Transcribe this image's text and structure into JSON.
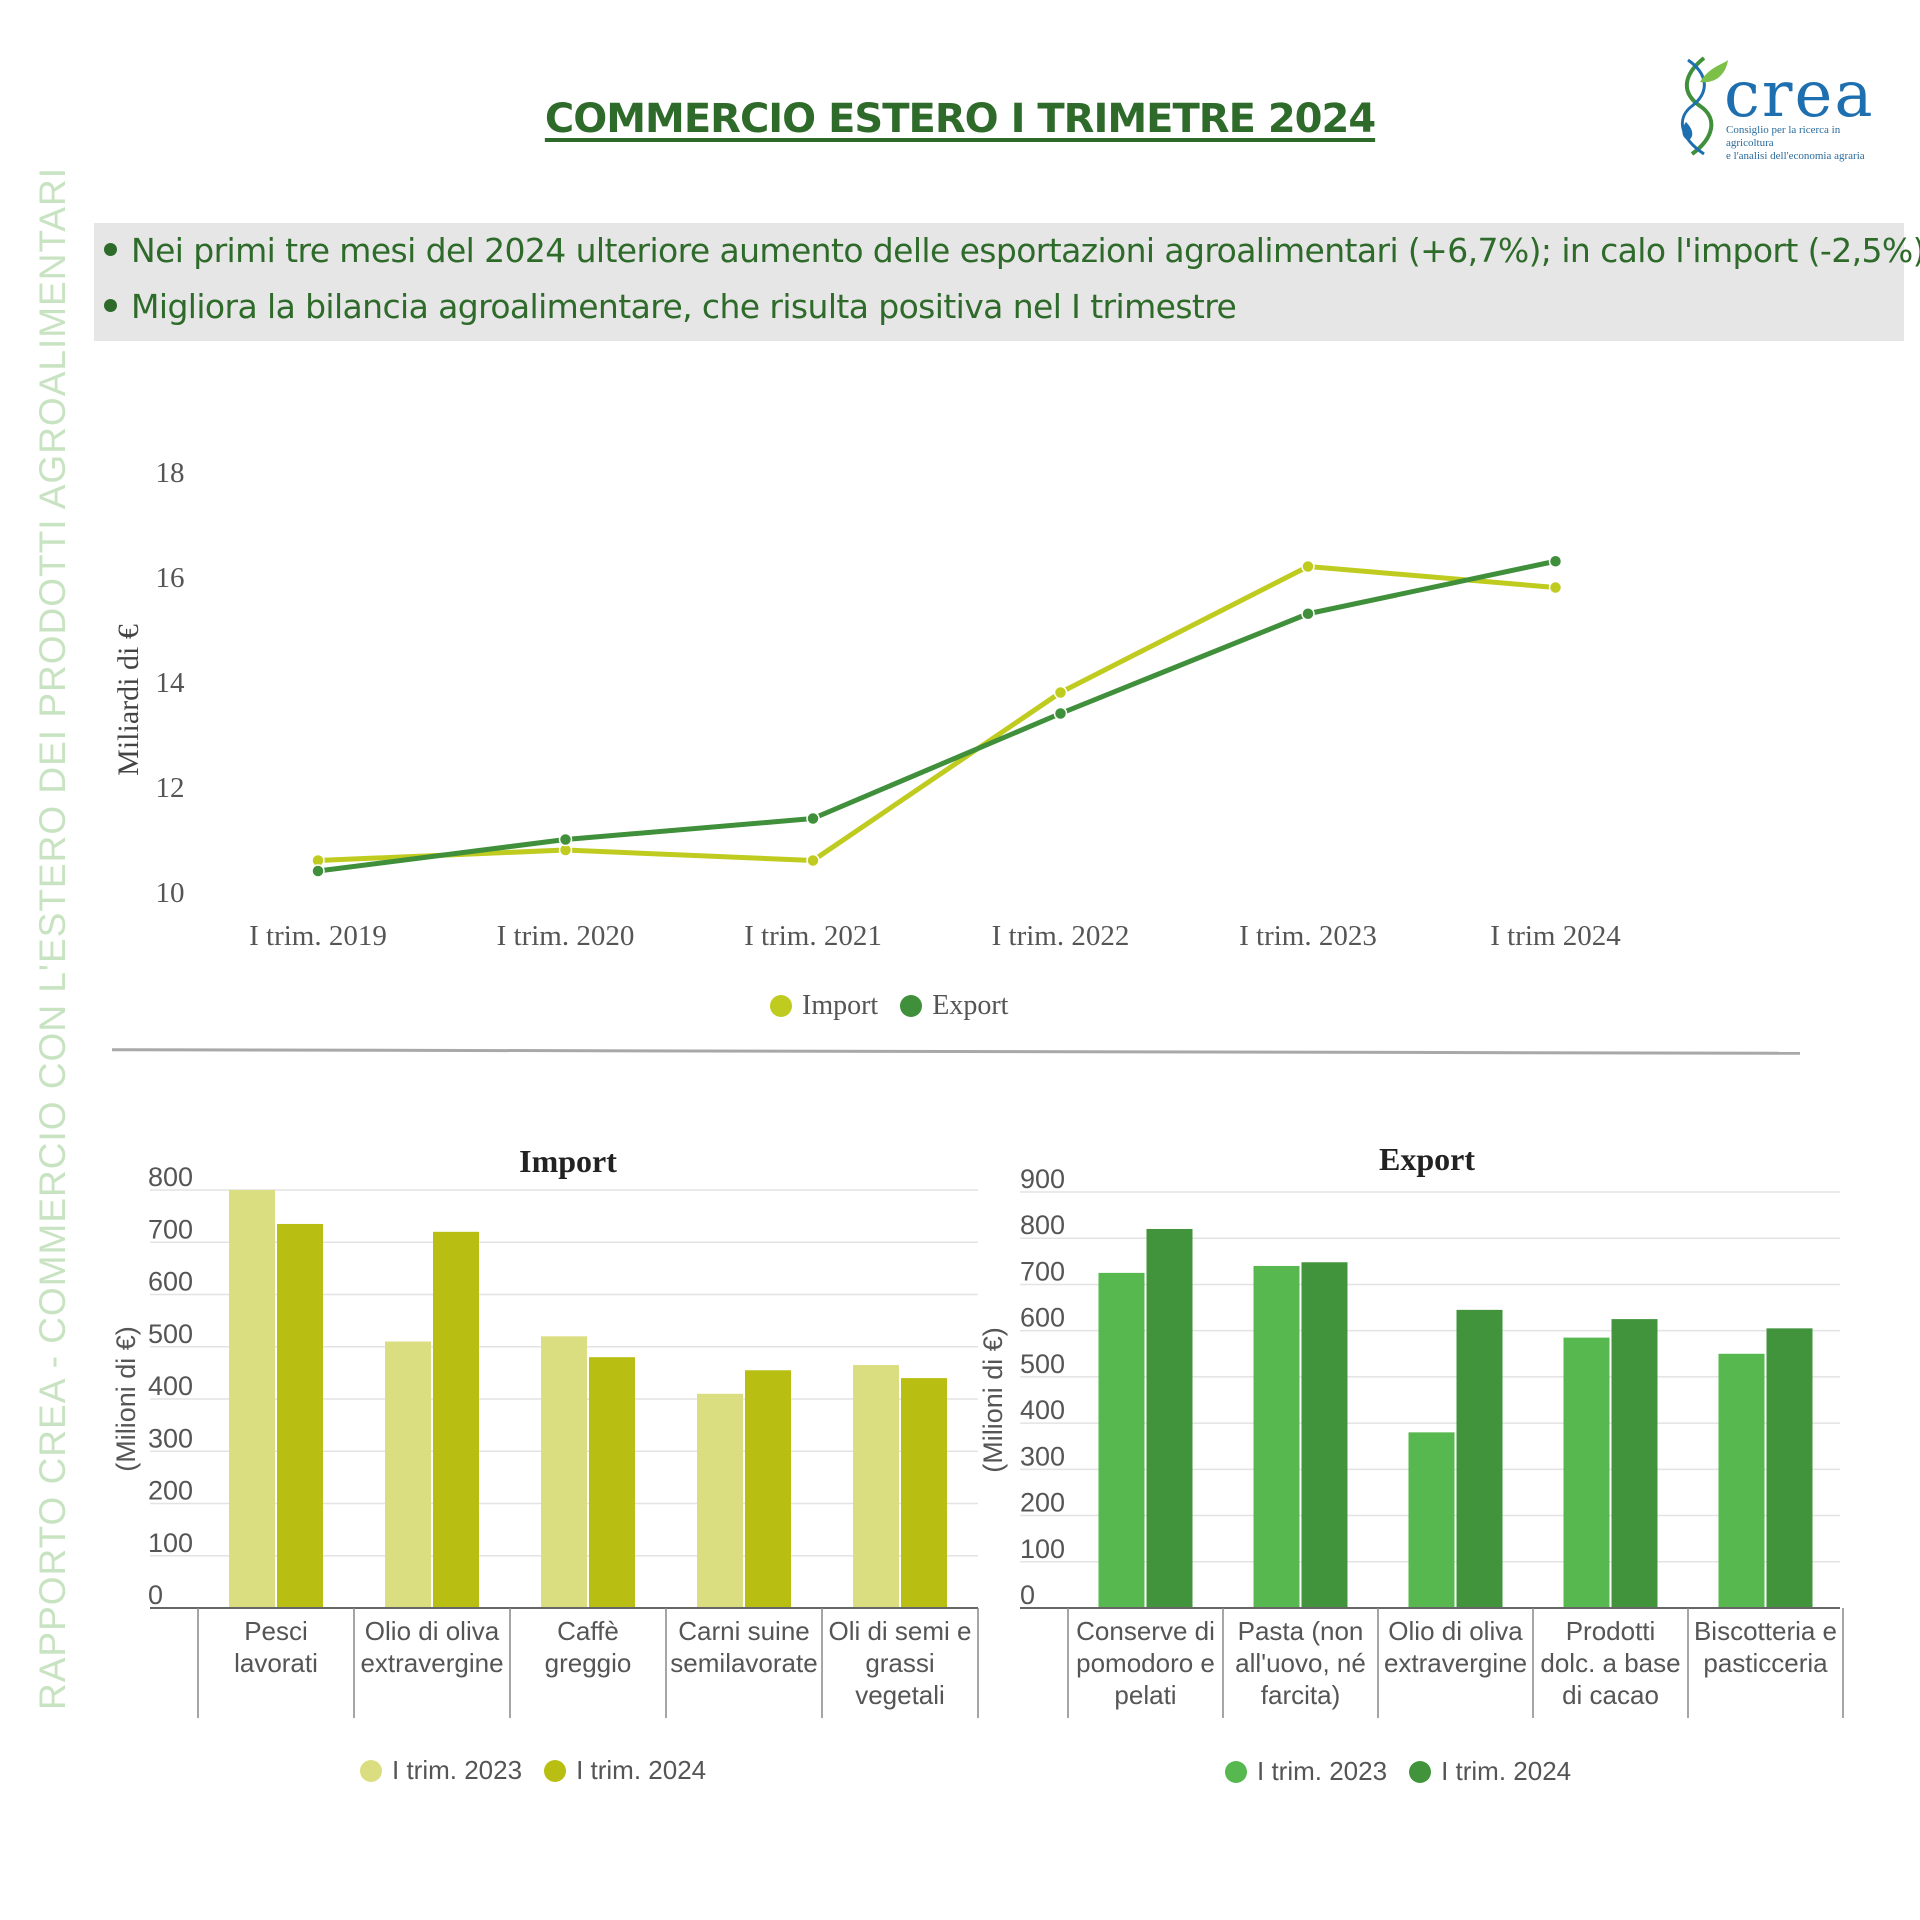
{
  "title": "COMMERCIO ESTERO I TRIMETRE 2024",
  "logo": {
    "icon": "crea-leaf-helix-icon",
    "wordmark": "crea",
    "subtitle_line1": "Consiglio per la ricerca in agricoltura",
    "subtitle_line2": "e l'analisi dell'economia agraria"
  },
  "side_text": "RAPPORTO CREA - COMMERCIO CON L'ESTERO DEI PRODOTTI AGROALIMENTARI",
  "bullets": [
    "Nei primi tre mesi del 2024 ulteriore aumento delle esportazioni agroalimentari (+6,7%); in calo l'import (-2,5%)",
    "Migliora la bilancia agroalimentare, che risulta positiva nel I trimestre"
  ],
  "colors": {
    "title_green": "#2e6b2a",
    "import_line": "#bfcc1f",
    "export_line": "#3f8f3b",
    "import_2023": "#dade80",
    "import_2024": "#b8bf12",
    "export_2023": "#56b84e",
    "export_2024": "#41943c"
  },
  "chart_data": [
    {
      "type": "line",
      "title": "",
      "ylabel": "Miliardi di €",
      "xlabel": "",
      "categories": [
        "I trim. 2019",
        "I trim. 2020",
        "I trim. 2021",
        "I trim. 2022",
        "I trim. 2023",
        "I trim 2024"
      ],
      "yticks": [
        "10",
        "12",
        "14",
        "16",
        "18"
      ],
      "ylim": [
        10,
        18
      ],
      "grid": false,
      "legend": "bottom",
      "series": [
        {
          "name": "Import",
          "values": [
            10.6,
            10.8,
            10.6,
            13.8,
            16.2,
            15.8
          ]
        },
        {
          "name": "Export",
          "values": [
            10.4,
            11.0,
            11.4,
            13.4,
            15.3,
            16.3
          ]
        }
      ]
    },
    {
      "type": "bar",
      "title": "Import",
      "ylabel": "(Milioni di €)",
      "xlabel": "",
      "categories": [
        "Pesci lavorati",
        "Olio di oliva extravergine",
        "Caffè greggio",
        "Carni suine semilavorate",
        "Oli di semi e grassi vegetali"
      ],
      "category_lines": [
        [
          "Pesci",
          "lavorati"
        ],
        [
          "Olio di oliva",
          "extravergine"
        ],
        [
          "Caffè",
          "greggio"
        ],
        [
          "Carni suine",
          "semilavorate"
        ],
        [
          "Oli di semi e",
          "grassi",
          "vegetali"
        ]
      ],
      "yticks": [
        "0",
        "100",
        "200",
        "300",
        "400",
        "500",
        "600",
        "700",
        "800"
      ],
      "ylim": [
        0,
        800
      ],
      "grid": true,
      "legend": "bottom",
      "series": [
        {
          "name": "I trim. 2023",
          "values": [
            800,
            510,
            520,
            410,
            465
          ]
        },
        {
          "name": "I trim. 2024",
          "values": [
            735,
            720,
            480,
            455,
            440
          ]
        }
      ]
    },
    {
      "type": "bar",
      "title": "Export",
      "ylabel": "(Milioni di €)",
      "xlabel": "",
      "categories": [
        "Conserve di pomodoro e pelati",
        "Pasta (non all'uovo, né farcita)",
        "Olio di oliva extravergine",
        "Prodotti dolc. a base di cacao",
        "Biscotteria e pasticceria"
      ],
      "category_lines": [
        [
          "Conserve di",
          "pomodoro e",
          "pelati"
        ],
        [
          "Pasta (non",
          "all'uovo, né",
          "farcita)"
        ],
        [
          "Olio di oliva",
          "extravergine"
        ],
        [
          "Prodotti",
          "dolc. a base",
          "di cacao"
        ],
        [
          "Biscotteria e",
          "pasticceria"
        ]
      ],
      "yticks": [
        "0",
        "100",
        "200",
        "300",
        "400",
        "500",
        "600",
        "700",
        "800",
        "900"
      ],
      "ylim": [
        0,
        900
      ],
      "grid": true,
      "legend": "bottom",
      "series": [
        {
          "name": "I trim. 2023",
          "values": [
            725,
            740,
            380,
            585,
            550
          ]
        },
        {
          "name": "I trim. 2024",
          "values": [
            820,
            748,
            645,
            625,
            605
          ]
        }
      ]
    }
  ]
}
